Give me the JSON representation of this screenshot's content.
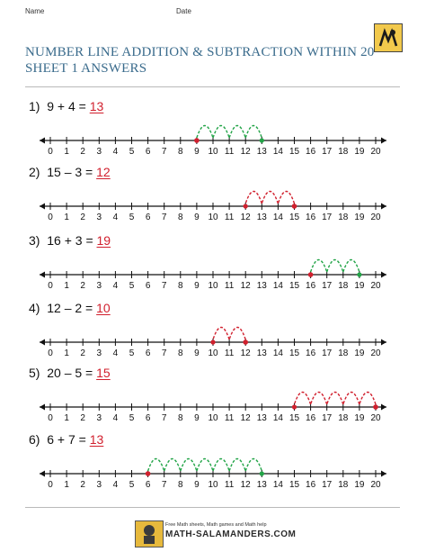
{
  "header": {
    "name_label": "Name",
    "date_label": "Date",
    "title_line1": "NUMBER LINE ADDITION & SUBTRACTION WITHIN 20",
    "title_line2": "SHEET 1 ANSWERS"
  },
  "colors": {
    "title": "#3a6b8c",
    "answer": "#d1202e",
    "add_arc": "#22a447",
    "sub_arc": "#d1202e"
  },
  "number_line": {
    "min": 0,
    "max": 20,
    "ticks": [
      "0",
      "1",
      "2",
      "3",
      "4",
      "5",
      "6",
      "7",
      "8",
      "9",
      "10",
      "11",
      "12",
      "13",
      "14",
      "15",
      "16",
      "17",
      "18",
      "19",
      "20"
    ]
  },
  "problems": [
    {
      "number": "1)",
      "expression": "9 + 4 =",
      "answer": "13",
      "op": "add",
      "start": 9,
      "end": 13
    },
    {
      "number": "2)",
      "expression": "15 – 3 =",
      "answer": "12",
      "op": "sub",
      "start": 15,
      "end": 12
    },
    {
      "number": "3)",
      "expression": "16 + 3 =",
      "answer": "19",
      "op": "add",
      "start": 16,
      "end": 19
    },
    {
      "number": "4)",
      "expression": "12 – 2 =",
      "answer": "10",
      "op": "sub",
      "start": 12,
      "end": 10
    },
    {
      "number": "5)",
      "expression": "20 – 5 =",
      "answer": "15",
      "op": "sub",
      "start": 20,
      "end": 15
    },
    {
      "number": "6)",
      "expression": "6 + 7 =",
      "answer": "13",
      "op": "add",
      "start": 6,
      "end": 13
    }
  ],
  "footer": {
    "tagline": "Free Math sheets, Math games and Math help",
    "site": "MATH-SALAMANDERS.COM"
  },
  "icons": {
    "logo": "salamander-logo-icon",
    "footer_logo": "salamander-mascot-icon"
  }
}
